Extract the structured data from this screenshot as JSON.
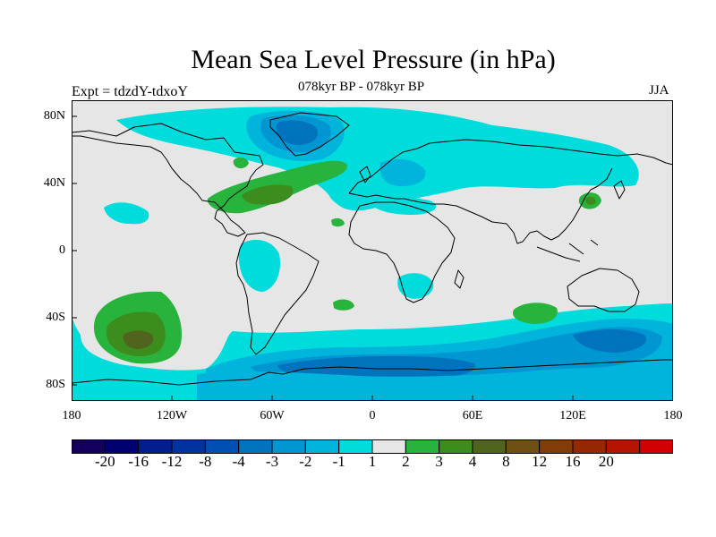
{
  "title": "Mean Sea Level Pressure (in hPa)",
  "subtitle": "078kyr BP - 078kyr BP",
  "left_label": "Expt = tdzdY-tdxoY",
  "right_label": "JJA",
  "lon_labels": [
    "180",
    "120W",
    "60W",
    "0",
    "60E",
    "120E",
    "180"
  ],
  "lat_labels": [
    "80N",
    "40N",
    "0",
    "40S",
    "80S"
  ],
  "colors": {
    "background": "#e6e6e6",
    "neg_minus1": "#00dcdc",
    "neg_minus2": "#00b4dc",
    "neg_minus3": "#0096d2",
    "neg_minus4": "#0073be",
    "pos_1": "#28b43c",
    "pos_2": "#3c8c1e",
    "pos_3": "#50641e",
    "pos_4": "#6e5014",
    "coast": "#000000"
  },
  "colorbar": {
    "colors": [
      "#14005a",
      "#00006e",
      "#001e8c",
      "#0032a0",
      "#0050b4",
      "#0073be",
      "#0096d2",
      "#00b4dc",
      "#00dcdc",
      "#e6e6e6",
      "#28b43c",
      "#3c8c1e",
      "#50641e",
      "#6e5014",
      "#823c0a",
      "#962800",
      "#b41400",
      "#d20000"
    ],
    "labels": [
      "-20",
      "-16",
      "-12",
      "-8",
      "-4",
      "-3",
      "-2",
      "-1",
      "1",
      "2",
      "3",
      "4",
      "8",
      "12",
      "16",
      "20"
    ]
  },
  "chart_data": {
    "type": "heatmap",
    "title": "Mean Sea Level Pressure (in hPa)",
    "subtitle": "078kyr BP - 078kyr BP",
    "season": "JJA",
    "experiment": "Expt = tdzdY-tdxoY",
    "x_range": [
      -180,
      180
    ],
    "y_range": [
      -90,
      90
    ],
    "colorbar_levels": [
      -20,
      -16,
      -12,
      -8,
      -4,
      -3,
      -2,
      -1,
      1,
      2,
      3,
      4,
      8,
      12,
      16,
      20
    ],
    "features": [
      {
        "region": "Southeast Pacific near 150W 50S",
        "level_range": [
          1,
          4
        ],
        "sign": "positive"
      },
      {
        "region": "North Atlantic near 60W 40N",
        "level_range": [
          1,
          3
        ],
        "sign": "positive"
      },
      {
        "region": "Greenland",
        "level_range": [
          -4,
          -1
        ],
        "sign": "negative"
      },
      {
        "region": "Southern Ocean 60S",
        "level_range": [
          -4,
          -1
        ],
        "sign": "negative"
      },
      {
        "region": "South Indian Ocean 40S 100E",
        "level_range": [
          1,
          1
        ],
        "sign": "positive"
      },
      {
        "region": "East China near 125E 30N",
        "level_range": [
          1,
          2
        ],
        "sign": "positive"
      },
      {
        "region": "Arctic and Northern Eurasia",
        "level_range": [
          -2,
          -1
        ],
        "sign": "negative"
      }
    ]
  }
}
